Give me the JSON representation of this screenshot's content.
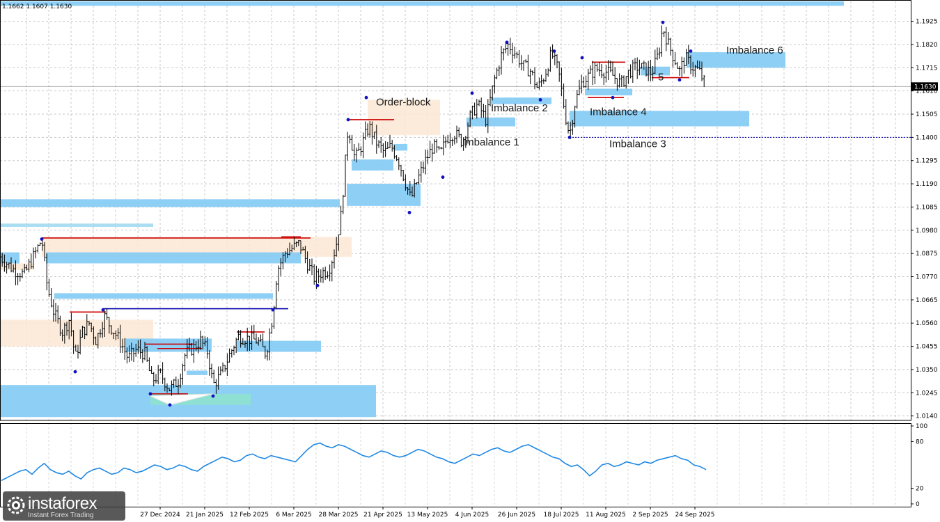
{
  "chart_data": [
    {
      "type": "candlestick",
      "ohlc_readout": "1.1662 1.1607 1.1630",
      "current_price": "1.1630",
      "y_ticks": [
        "1.1925",
        "1.1820",
        "1.1715",
        "1.1610",
        "1.1505",
        "1.1400",
        "1.1295",
        "1.1190",
        "1.1085",
        "1.0980",
        "1.0875",
        "1.0770",
        "1.0665",
        "1.0560",
        "1.0455",
        "1.0350",
        "1.0245",
        "1.0140"
      ],
      "ylim": [
        1.012,
        1.2015
      ],
      "x_ticks": [
        "27 Dec 2024",
        "21 Jan 2025",
        "12 Feb 2025",
        "6 Mar 2025",
        "28 Mar 2025",
        "21 Apr 2025",
        "13 May 2025",
        "4 Jun 2025",
        "26 Jun 2025",
        "18 Jul 2025",
        "11 Aug 2025",
        "2 Sep 2025",
        "24 Sep 2025"
      ],
      "grid": true,
      "close_path": [
        [
          0,
          1.086
        ],
        [
          20,
          1.08
        ],
        [
          35,
          1.078
        ],
        [
          48,
          1.086
        ],
        [
          60,
          1.094
        ],
        [
          68,
          1.072
        ],
        [
          78,
          1.06
        ],
        [
          90,
          1.052
        ],
        [
          100,
          1.058
        ],
        [
          108,
          1.04
        ],
        [
          118,
          1.052
        ],
        [
          128,
          1.056
        ],
        [
          138,
          1.048
        ],
        [
          150,
          1.059
        ],
        [
          160,
          1.054
        ],
        [
          172,
          1.048
        ],
        [
          184,
          1.04
        ],
        [
          196,
          1.044
        ],
        [
          208,
          1.042
        ],
        [
          218,
          1.03
        ],
        [
          230,
          1.033
        ],
        [
          244,
          1.026
        ],
        [
          256,
          1.03
        ],
        [
          266,
          1.042
        ],
        [
          278,
          1.045
        ],
        [
          288,
          1.048
        ],
        [
          298,
          1.043
        ],
        [
          306,
          1.028
        ],
        [
          318,
          1.033
        ],
        [
          330,
          1.042
        ],
        [
          342,
          1.05
        ],
        [
          356,
          1.049
        ],
        [
          370,
          1.048
        ],
        [
          382,
          1.042
        ],
        [
          392,
          1.06
        ],
        [
          398,
          1.08
        ],
        [
          410,
          1.088
        ],
        [
          420,
          1.09
        ],
        [
          430,
          1.092
        ],
        [
          440,
          1.084
        ],
        [
          452,
          1.076
        ],
        [
          462,
          1.079
        ],
        [
          472,
          1.08
        ],
        [
          482,
          1.09
        ],
        [
          490,
          1.105
        ],
        [
          500,
          1.145
        ],
        [
          510,
          1.13
        ],
        [
          520,
          1.137
        ],
        [
          530,
          1.145
        ],
        [
          540,
          1.138
        ],
        [
          552,
          1.133
        ],
        [
          562,
          1.136
        ],
        [
          572,
          1.13
        ],
        [
          582,
          1.12
        ],
        [
          590,
          1.112
        ],
        [
          600,
          1.121
        ],
        [
          612,
          1.13
        ],
        [
          622,
          1.136
        ],
        [
          632,
          1.132
        ],
        [
          642,
          1.14
        ],
        [
          652,
          1.142
        ],
        [
          664,
          1.138
        ],
        [
          676,
          1.15
        ],
        [
          686,
          1.155
        ],
        [
          698,
          1.148
        ],
        [
          710,
          1.166
        ],
        [
          720,
          1.177
        ],
        [
          730,
          1.182
        ],
        [
          740,
          1.178
        ],
        [
          752,
          1.172
        ],
        [
          762,
          1.17
        ],
        [
          772,
          1.162
        ],
        [
          782,
          1.168
        ],
        [
          792,
          1.178
        ],
        [
          802,
          1.17
        ],
        [
          812,
          1.15
        ],
        [
          818,
          1.141
        ],
        [
          826,
          1.156
        ],
        [
          836,
          1.165
        ],
        [
          846,
          1.168
        ],
        [
          856,
          1.171
        ],
        [
          868,
          1.17
        ],
        [
          880,
          1.168
        ],
        [
          892,
          1.164
        ],
        [
          904,
          1.17
        ],
        [
          916,
          1.172
        ],
        [
          926,
          1.171
        ],
        [
          936,
          1.169
        ],
        [
          946,
          1.178
        ],
        [
          952,
          1.19
        ],
        [
          960,
          1.182
        ],
        [
          968,
          1.176
        ],
        [
          976,
          1.17
        ],
        [
          984,
          1.176
        ],
        [
          994,
          1.172
        ],
        [
          1004,
          1.17
        ],
        [
          1014,
          1.163
        ]
      ],
      "zones": [
        {
          "label": "",
          "kind": "imbalance",
          "x0": 0,
          "x1": 1212,
          "y0": 1.2015,
          "y1": 1.1995
        },
        {
          "label": "Order-block",
          "kind": "order-block",
          "x0": 528,
          "x1": 632,
          "y0": 1.157,
          "y1": 1.141
        },
        {
          "label": "Imbalance 1",
          "kind": "imbalance",
          "x0": 670,
          "x1": 740,
          "y0": 1.149,
          "y1": 1.145
        },
        {
          "label": "Imbalance 2",
          "kind": "imbalance",
          "x0": 705,
          "x1": 792,
          "y0": 1.158,
          "y1": 1.155
        },
        {
          "label": "Imbalance 3",
          "kind": "imbalance",
          "x0": 818,
          "x1": 1076,
          "y0": 1.152,
          "y1": 1.145
        },
        {
          "label": "Imbalance 4",
          "kind": "imbalance",
          "x0": 840,
          "x1": 908,
          "y0": 1.162,
          "y1": 1.159
        },
        {
          "label": "5",
          "kind": "imbalance",
          "x0": 920,
          "x1": 962,
          "y0": 1.172,
          "y1": 1.168
        },
        {
          "label": "Imbalance 6",
          "kind": "imbalance",
          "x0": 986,
          "x1": 1128,
          "y0": 1.1785,
          "y1": 1.1715
        },
        {
          "label": "",
          "kind": "imbalance",
          "x0": 498,
          "x1": 604,
          "y0": 1.119,
          "y1": 1.109
        },
        {
          "label": "",
          "kind": "imbalance",
          "x0": 505,
          "x1": 565,
          "y0": 1.13,
          "y1": 1.125
        },
        {
          "label": "",
          "kind": "imbalance",
          "x0": 565,
          "x1": 585,
          "y0": 1.137,
          "y1": 1.134
        },
        {
          "label": "",
          "kind": "imbalance",
          "x0": 0,
          "x1": 488,
          "y0": 1.112,
          "y1": 1.1085
        },
        {
          "label": "",
          "kind": "imbalance-light",
          "x0": 0,
          "x1": 220,
          "y0": 1.101,
          "y1": 1.0995
        },
        {
          "label": "",
          "kind": "order-block",
          "x0": 60,
          "x1": 505,
          "y0": 1.095,
          "y1": 1.086
        },
        {
          "label": "",
          "kind": "imbalance",
          "x0": 66,
          "x1": 432,
          "y0": 1.088,
          "y1": 1.083
        },
        {
          "label": "",
          "kind": "imbalance",
          "x0": 0,
          "x1": 28,
          "y0": 1.088,
          "y1": 1.083
        },
        {
          "label": "",
          "kind": "order-block",
          "x0": 0,
          "x1": 48,
          "y0": 1.083,
          "y1": 1.08
        },
        {
          "label": "",
          "kind": "imbalance",
          "x0": 78,
          "x1": 392,
          "y0": 1.0695,
          "y1": 1.067
        },
        {
          "label": "",
          "kind": "order-block",
          "x0": 0,
          "x1": 220,
          "y0": 1.0575,
          "y1": 1.0455
        },
        {
          "label": "",
          "kind": "imbalance",
          "x0": 180,
          "x1": 304,
          "y0": 1.049,
          "y1": 1.043
        },
        {
          "label": "",
          "kind": "imbalance",
          "x0": 340,
          "x1": 461,
          "y0": 1.048,
          "y1": 1.043
        },
        {
          "label": "",
          "kind": "imbalance",
          "x0": 268,
          "x1": 298,
          "y0": 1.0345,
          "y1": 1.0325
        },
        {
          "label": "",
          "kind": "imbalance",
          "x0": 0,
          "x1": 540,
          "y0": 1.028,
          "y1": 1.0135
        },
        {
          "label": "",
          "kind": "imbalance-teal",
          "x0": 216,
          "x1": 360,
          "y0": 1.024,
          "y1": 1.019
        }
      ],
      "levels": [
        {
          "kind": "high",
          "color": "#cc0000",
          "x0": 500,
          "x1": 566,
          "y": 1.148
        },
        {
          "kind": "high",
          "color": "#cc0000",
          "x0": 60,
          "x1": 446,
          "y": 1.0945
        },
        {
          "kind": "high",
          "color": "#cc0000",
          "x0": 404,
          "x1": 432,
          "y": 1.095
        },
        {
          "kind": "high",
          "color": "#cc0000",
          "x0": 100,
          "x1": 152,
          "y": 1.061
        },
        {
          "kind": "high",
          "color": "#cc0000",
          "x0": 208,
          "x1": 278,
          "y": 1.0465
        },
        {
          "kind": "high",
          "color": "#cc0000",
          "x0": 226,
          "x1": 290,
          "y": 1.0445
        },
        {
          "kind": "high",
          "color": "#cc0000",
          "x0": 340,
          "x1": 380,
          "y": 1.052
        },
        {
          "kind": "high",
          "color": "#cc0000",
          "x0": 216,
          "x1": 270,
          "y": 1.024
        },
        {
          "kind": "high",
          "color": "#cc0000",
          "x0": 850,
          "x1": 898,
          "y": 1.174
        },
        {
          "kind": "high",
          "color": "#cc0000",
          "x0": 844,
          "x1": 896,
          "y": 1.158
        },
        {
          "kind": "high",
          "color": "#cc0000",
          "x0": 936,
          "x1": 990,
          "y": 1.167
        },
        {
          "kind": "low",
          "color": "#0000aa",
          "x0": 148,
          "x1": 414,
          "y": 1.0625
        },
        {
          "kind": "low",
          "color": "#0000aa",
          "x0": 818,
          "x1": 1310,
          "y": 1.14,
          "dotted": true
        }
      ],
      "swing_points": [
        [
          60,
          1.094
        ],
        [
          108,
          1.034
        ],
        [
          148,
          1.062
        ],
        [
          216,
          1.024
        ],
        [
          244,
          1.019
        ],
        [
          306,
          1.023
        ],
        [
          392,
          1.062
        ],
        [
          456,
          1.073
        ],
        [
          500,
          1.148
        ],
        [
          526,
          1.158
        ],
        [
          588,
          1.106
        ],
        [
          636,
          1.122
        ],
        [
          678,
          1.16
        ],
        [
          728,
          1.183
        ],
        [
          776,
          1.157
        ],
        [
          796,
          1.179
        ],
        [
          818,
          1.14
        ],
        [
          836,
          1.176
        ],
        [
          880,
          1.158
        ],
        [
          952,
          1.192
        ],
        [
          976,
          1.166
        ],
        [
          992,
          1.179
        ]
      ],
      "trend_line": [
        [
          216,
          1.023
        ],
        [
          244,
          1.019
        ],
        [
          306,
          1.024
        ]
      ]
    },
    {
      "type": "line",
      "series": [
        {
          "values": [
            30,
            34,
            38,
            42,
            44,
            38,
            46,
            52,
            44,
            40,
            38,
            42,
            36,
            32,
            40,
            44,
            46,
            42,
            38,
            40,
            46,
            44,
            40,
            42,
            46,
            50,
            48,
            44,
            46,
            50,
            48,
            44,
            42,
            48,
            52,
            56,
            60,
            58,
            54,
            56,
            62,
            64,
            60,
            58,
            62,
            60,
            58,
            56,
            54,
            62,
            70,
            76,
            78,
            74,
            72,
            76,
            74,
            70,
            66,
            62,
            60,
            64,
            68,
            66,
            62,
            60,
            62,
            66,
            70,
            68,
            64,
            60,
            58,
            54,
            52,
            56,
            60,
            64,
            62,
            66,
            70,
            72,
            68,
            66,
            70,
            74,
            76,
            72,
            68,
            64,
            60,
            58,
            52,
            48,
            50,
            44,
            36,
            42,
            50,
            52,
            48,
            50,
            54,
            52,
            50,
            54,
            52,
            56,
            58,
            60,
            62,
            58,
            56,
            50,
            48,
            44
          ]
        }
      ],
      "y_ticks": [
        "100",
        "80",
        "20",
        "0"
      ],
      "ylim": [
        0,
        100
      ]
    }
  ],
  "logo": {
    "brand": "instaforex",
    "tagline": "Instant Forex Trading"
  },
  "colors": {
    "imbalance": "#88ccf4",
    "order_block": "#fbe8d4",
    "rsi": "#1e88e5",
    "high_level": "#cc0000",
    "low_level": "#0000aa"
  }
}
